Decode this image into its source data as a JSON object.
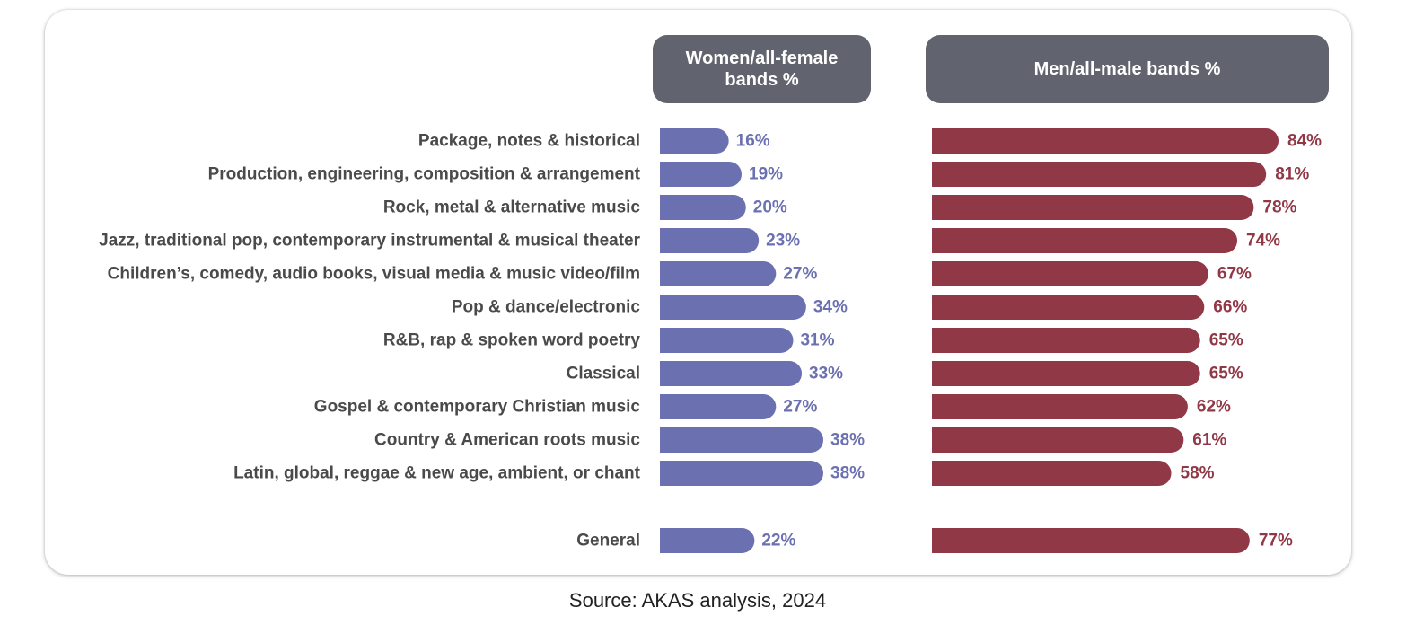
{
  "chart_data": {
    "type": "bar",
    "headers": {
      "women": "Women/all-female bands %",
      "men": "Men/all-male bands %"
    },
    "categories": [
      "Package, notes & historical",
      "Production, engineering, composition & arrangement",
      "Rock, metal & alternative music",
      "Jazz, traditional pop, contemporary instrumental & musical theater",
      "Children’s, comedy, audio books, visual media & music video/film",
      "Pop & dance/electronic",
      "R&B, rap & spoken word poetry",
      "Classical",
      "Gospel & contemporary Christian music",
      "Country & American roots music",
      "Latin, global, reggae & new age, ambient, or chant",
      "General"
    ],
    "series": [
      {
        "name": "Women/all-female bands %",
        "values": [
          16,
          19,
          20,
          23,
          27,
          34,
          31,
          33,
          27,
          38,
          38,
          22
        ],
        "labels": [
          "16%",
          "19%",
          "20%",
          "23%",
          "27%",
          "34%",
          "31%",
          "33%",
          "27%",
          "38%",
          "38%",
          "22%"
        ],
        "color": "#6b70b0"
      },
      {
        "name": "Men/all-male bands %",
        "values": [
          84,
          81,
          78,
          74,
          67,
          66,
          65,
          65,
          62,
          61,
          58,
          77
        ],
        "labels": [
          "84%",
          "81%",
          "78%",
          "74%",
          "67%",
          "66%",
          "65%",
          "65%",
          "62%",
          "61%",
          "58%",
          "77%"
        ],
        "color": "#913847"
      }
    ],
    "grid": false,
    "legend": "none"
  },
  "source": "Source: AKAS analysis, 2024",
  "colors": {
    "header_bg": "#61646e",
    "women_bar": "#6b70b0",
    "men_bar": "#913847",
    "label_text": "#4a4a4a"
  }
}
